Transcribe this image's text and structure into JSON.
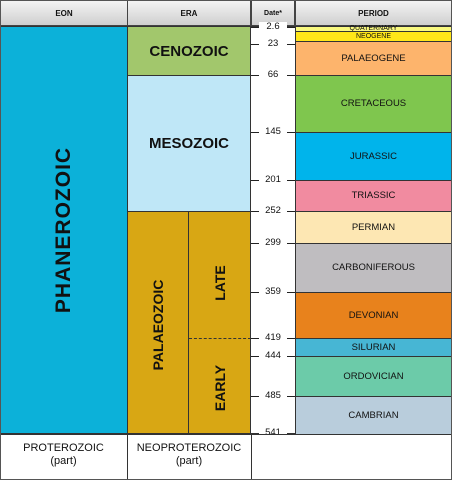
{
  "headers": {
    "eon": "EON",
    "era": "ERA",
    "date": "Date*",
    "period": "PERIOD"
  },
  "eons": {
    "phanerozoic": "PHANEROZOIC",
    "proterozoic": "PROTEROZOIC\n(part)"
  },
  "eras": {
    "cenozoic": "CENOZOIC",
    "mesozoic": "MESOZOIC",
    "palaeozoic": "PALAEOZOIC",
    "late": "LATE",
    "early": "EARLY",
    "neoproterozoic": "NEOPROTEROZOIC\n(part)"
  },
  "dates": [
    "2.6",
    "23",
    "66",
    "145",
    "201",
    "252",
    "299",
    "359",
    "419",
    "444",
    "485",
    "541"
  ],
  "periods": [
    {
      "label": "QUATERNARY",
      "color": "#f9f97f"
    },
    {
      "label": "NEOGENE",
      "color": "#ffe619"
    },
    {
      "label": "PALAEOGENE",
      "color": "#fdb46c"
    },
    {
      "label": "CRETACEOUS",
      "color": "#7fc64e"
    },
    {
      "label": "JURASSIC",
      "color": "#00b4eb"
    },
    {
      "label": "TRIASSIC",
      "color": "#f18ba0"
    },
    {
      "label": "PERMIAN",
      "color": "#fde7b3"
    },
    {
      "label": "CARBONIFEROUS",
      "color": "#bfbdc0"
    },
    {
      "label": "DEVONIAN",
      "color": "#e8821c"
    },
    {
      "label": "SILURIAN",
      "color": "#47b6d4"
    },
    {
      "label": "ORDOVICIAN",
      "color": "#6ccba9"
    },
    {
      "label": "CAMBRIAN",
      "color": "#b9cddc"
    }
  ],
  "colors": {
    "phanerozoic": "#0cb1d9",
    "cenozoic": "#a2c76c",
    "mesozoic": "#bfe7f7",
    "palaeozoic": "#d8a714"
  }
}
